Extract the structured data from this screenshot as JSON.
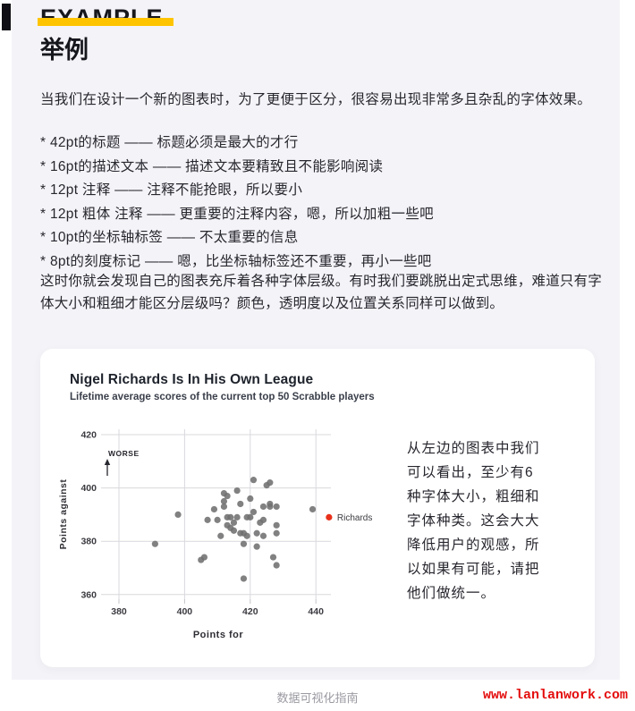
{
  "page": {
    "header": {
      "strike_title": "EXAMPLE",
      "title": "举例"
    },
    "intro": "当我们在设计一个新的图表时，为了更便于区分，很容易出现非常多且杂乱的字体效果。",
    "bullets": [
      "* 42pt的标题 —— 标题必须是最大的才行",
      "* 16pt的描述文本 —— 描述文本要精致且不能影响阅读",
      "* 12pt 注释 —— 注释不能抢眼，所以要小",
      "* 12pt 粗体 注释 —— 更重要的注释内容，嗯，所以加粗一些吧",
      "* 10pt的坐标轴标签 —— 不太重要的信息",
      "* 8pt的刻度标记 —— 嗯，比坐标轴标签还不重要，再小一些吧"
    ],
    "closing": "这时你就会发现自己的图表充斥着各种字体层级。有时我们要跳脱出定式思维，难道只有字体大小和粗细才能区分层级吗？颜色，透明度以及位置关系同样可以做到。",
    "aside_lines": [
      "从左边的图表中我们",
      "可以看出，至少有6",
      "种字体大小，粗细和",
      "字体种类。这会大大",
      "降低用户的观感，所",
      "以如果有可能，请把",
      "他们做统一。"
    ],
    "footer": {
      "center": "数据可视化指南",
      "site": "www.lanlanwork.com"
    }
  },
  "colors": {
    "accent_yellow": "#ffc400",
    "panel_gray": "#f4f4f8",
    "dot_gray": "#707070",
    "richards_red": "#e8301a",
    "grid_gray": "#d9d9de",
    "site_red": "#e40d0d"
  },
  "chart_data": {
    "type": "scatter",
    "title": "Nigel Richards Is In His Own League",
    "subtitle": "Lifetime average scores of the current top 50 Scrabble players",
    "xlabel": "Points for",
    "ylabel": "Points against",
    "annotation": "WORSE",
    "grid": true,
    "xlim": [
      376,
      448
    ],
    "ylim": [
      356,
      424
    ],
    "xticks": [
      380,
      400,
      420,
      440
    ],
    "yticks": [
      360,
      380,
      400,
      420
    ],
    "series": [
      {
        "name": "Top 50 Scrabble players",
        "color": "#707070",
        "points": [
          [
            391,
            379
          ],
          [
            398,
            390
          ],
          [
            405,
            373
          ],
          [
            406,
            374
          ],
          [
            407,
            388
          ],
          [
            409,
            392
          ],
          [
            410,
            388
          ],
          [
            411,
            382
          ],
          [
            412,
            398
          ],
          [
            412,
            395
          ],
          [
            412,
            393
          ],
          [
            413,
            397
          ],
          [
            413,
            389
          ],
          [
            413,
            386
          ],
          [
            414,
            385
          ],
          [
            414,
            389
          ],
          [
            415,
            387
          ],
          [
            415,
            384
          ],
          [
            416,
            399
          ],
          [
            416,
            389
          ],
          [
            417,
            394
          ],
          [
            417,
            383
          ],
          [
            418,
            366
          ],
          [
            418,
            379
          ],
          [
            418,
            383
          ],
          [
            419,
            382
          ],
          [
            419,
            389
          ],
          [
            420,
            396
          ],
          [
            420,
            389
          ],
          [
            421,
            403
          ],
          [
            421,
            391
          ],
          [
            422,
            378
          ],
          [
            422,
            383
          ],
          [
            423,
            387
          ],
          [
            424,
            382
          ],
          [
            424,
            393
          ],
          [
            424,
            388
          ],
          [
            425,
            401
          ],
          [
            426,
            394
          ],
          [
            426,
            402
          ],
          [
            426,
            393
          ],
          [
            427,
            374
          ],
          [
            428,
            393
          ],
          [
            428,
            386
          ],
          [
            428,
            371
          ],
          [
            428,
            383
          ],
          [
            439,
            392
          ]
        ]
      },
      {
        "name": "Richards",
        "color": "#e8301a",
        "label": "Richards",
        "points": [
          [
            444,
            389
          ]
        ]
      }
    ]
  }
}
